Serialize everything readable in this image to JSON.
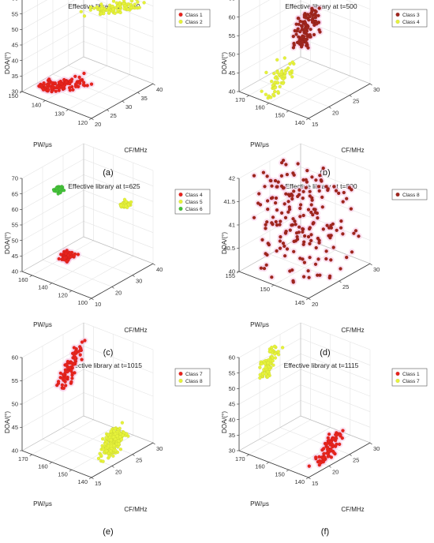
{
  "figure": {
    "panels": [
      {
        "label": "(a)",
        "title": "Effective library at t=230"
      },
      {
        "label": "(b)",
        "title": "Effective library at t=500"
      },
      {
        "label": "(c)",
        "title": "Effective library at t=625"
      },
      {
        "label": "(d)",
        "title": "Effective library at t=800"
      },
      {
        "label": "(e)",
        "title": "Effective library at t=1015"
      },
      {
        "label": "(f)",
        "title": "Effective library at t=1115"
      }
    ]
  },
  "colors": {
    "red": "#e8231d",
    "yellow": "#e6f23a",
    "green": "#45c23a",
    "brown": "#a0251d",
    "halo": "#f7c9e6",
    "axis": "#333333",
    "grid": "#e4e4e4"
  },
  "chart_data": [
    {
      "type": "scatter",
      "title": "Effective library at t=230",
      "xlabel": "CF/MHz",
      "ylabel": "PW/μs",
      "zlabel": "DOA/(°)",
      "xlim": [
        20,
        40
      ],
      "ylim": [
        120,
        150
      ],
      "zlim": [
        30,
        60
      ],
      "xticks": [
        20,
        25,
        30,
        35,
        40
      ],
      "yticks": [
        120,
        130,
        140,
        150
      ],
      "zticks": [
        30,
        35,
        40,
        45,
        50,
        55,
        60
      ],
      "legend": "top-right",
      "series": [
        {
          "name": "Class 1",
          "color": "red",
          "halo": true,
          "count": 110,
          "center": [
            25,
            140,
            32
          ],
          "spread": [
            3,
            3,
            1.5
          ],
          "stretch": [
            2.5,
            -6,
            1.0
          ]
        },
        {
          "name": "Class 2",
          "color": "yellow",
          "halo": false,
          "count": 90,
          "center": [
            33,
            128,
            56
          ],
          "spread": [
            3,
            3,
            1.5
          ],
          "stretch": [
            3,
            -5,
            0.8
          ]
        }
      ]
    },
    {
      "type": "scatter",
      "title": "Effective library at t=500",
      "xlabel": "CF/MHz",
      "ylabel": "PW/μs",
      "zlabel": "DOA/(°)",
      "xlim": [
        15,
        30
      ],
      "ylim": [
        140,
        175
      ],
      "zlim": [
        40,
        65
      ],
      "xticks": [
        15,
        20,
        25,
        30
      ],
      "yticks": [
        140,
        150,
        160,
        170
      ],
      "zticks": [
        40,
        45,
        50,
        55,
        60,
        65
      ],
      "legend": "top-right",
      "series": [
        {
          "name": "Class 3",
          "color": "brown",
          "halo": true,
          "count": 110,
          "center": [
            24,
            160,
            54
          ],
          "spread": [
            2.5,
            3,
            1.5
          ],
          "stretch": [
            3,
            4,
            2
          ]
        },
        {
          "name": "Class 4",
          "color": "yellow",
          "halo": false,
          "count": 60,
          "center": [
            20,
            165,
            42
          ],
          "spread": [
            2.5,
            3,
            1.2
          ],
          "stretch": [
            3,
            3,
            1.5
          ]
        }
      ]
    },
    {
      "type": "scatter",
      "title": "Effective library at t=625",
      "xlabel": "CF/MHz",
      "ylabel": "PW/μs",
      "zlabel": "DOA/(°)",
      "xlim": [
        10,
        40
      ],
      "ylim": [
        100,
        170
      ],
      "zlim": [
        40,
        70
      ],
      "xticks": [
        10,
        20,
        30,
        40
      ],
      "yticks": [
        100,
        120,
        140,
        160
      ],
      "zticks": [
        40,
        45,
        50,
        55,
        60,
        65,
        70
      ],
      "legend": "top-right",
      "series": [
        {
          "name": "Class 4",
          "color": "red",
          "halo": true,
          "count": 80,
          "center": [
            22,
            150,
            43
          ],
          "spread": [
            2.5,
            5,
            1
          ]
        },
        {
          "name": "Class 5",
          "color": "yellow",
          "halo": false,
          "count": 50,
          "center": [
            36,
            120,
            58
          ],
          "spread": [
            2,
            4,
            1
          ]
        },
        {
          "name": "Class 6",
          "color": "green",
          "halo": false,
          "count": 50,
          "center": [
            18,
            150,
            66
          ],
          "spread": [
            2,
            4,
            0.8
          ]
        }
      ]
    },
    {
      "type": "scatter",
      "title": "Effective library at t=800",
      "xlabel": "CF/MHz",
      "ylabel": "PW/μs",
      "zlabel": "DOA/(°)",
      "xlim": [
        20,
        30
      ],
      "ylim": [
        145,
        155
      ],
      "zlim": [
        40,
        42
      ],
      "xticks": [
        20,
        25,
        30
      ],
      "yticks": [
        145,
        150,
        155
      ],
      "zticks": [
        40,
        40.5,
        41,
        41.5,
        42
      ],
      "legend": "top-right",
      "series": [
        {
          "name": "Class 8",
          "color": "brown",
          "halo": true,
          "count": 200,
          "uniform": true
        }
      ]
    },
    {
      "type": "scatter",
      "title": "Effective library at t=1015",
      "xlabel": "CF/MHz",
      "ylabel": "PW/μs",
      "zlabel": "DOA/(°)",
      "xlim": [
        15,
        30
      ],
      "ylim": [
        140,
        175
      ],
      "zlim": [
        40,
        60
      ],
      "xticks": [
        15,
        20,
        25,
        30
      ],
      "yticks": [
        140,
        150,
        160,
        170
      ],
      "zticks": [
        40,
        45,
        50,
        55,
        60
      ],
      "legend": "top-right",
      "series": [
        {
          "name": "Class 7",
          "color": "red",
          "halo": true,
          "count": 90,
          "center": [
            22,
            165,
            56
          ],
          "spread": [
            2,
            2,
            1.2
          ],
          "stretch": [
            4,
            4,
            1.5
          ]
        },
        {
          "name": "Class 8",
          "color": "yellow",
          "halo": false,
          "count": 220,
          "center": [
            25,
            150,
            41
          ],
          "spread": [
            2.5,
            2.5,
            0.8
          ],
          "stretch": [
            3,
            4,
            0.5
          ]
        }
      ]
    },
    {
      "type": "scatter",
      "title": "Effective library at t=1115",
      "xlabel": "CF/MHz",
      "ylabel": "PW/μs",
      "zlabel": "DOA/(°)",
      "xlim": [
        15,
        30
      ],
      "ylim": [
        140,
        175
      ],
      "zlim": [
        30,
        60
      ],
      "xticks": [
        15,
        20,
        25,
        30
      ],
      "yticks": [
        140,
        150,
        160,
        170
      ],
      "zticks": [
        30,
        35,
        40,
        45,
        50,
        55,
        60
      ],
      "legend": "top-right",
      "series": [
        {
          "name": "Class 1",
          "color": "red",
          "halo": true,
          "count": 90,
          "center": [
            24,
            148,
            31
          ],
          "spread": [
            2,
            2,
            1
          ],
          "stretch": [
            4,
            4,
            1
          ]
        },
        {
          "name": "Class 7",
          "color": "yellow",
          "halo": false,
          "count": 80,
          "center": [
            20,
            170,
            56
          ],
          "spread": [
            2,
            2,
            1
          ],
          "stretch": [
            3,
            4,
            1.5
          ]
        }
      ]
    }
  ]
}
